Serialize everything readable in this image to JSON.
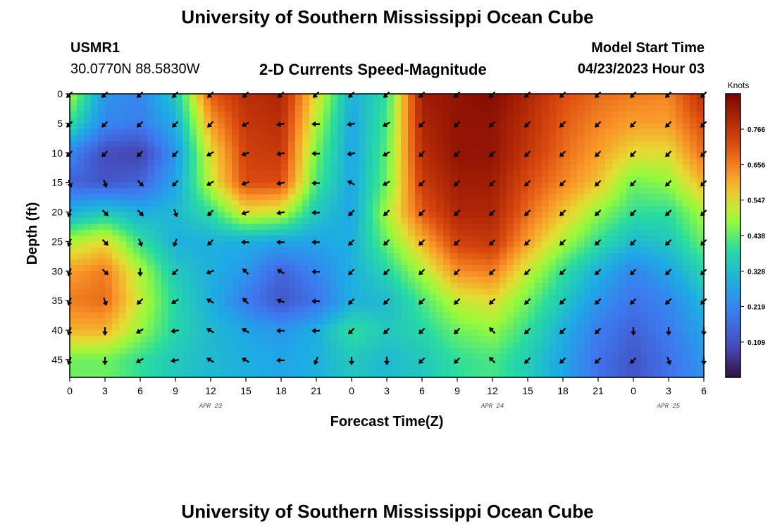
{
  "header": {
    "title": "University of Southern Mississippi Ocean Cube",
    "station_id": "USMR1",
    "station_coords": "30.0770N  88.5830W",
    "chart_title": "2-D Currents Speed-Magnitude",
    "model_start_label": "Model Start Time",
    "model_start_value": "04/23/2023 Hour 03"
  },
  "footer": {
    "title": "University of Southern Mississippi Ocean Cube"
  },
  "chart_data": {
    "type": "heatmap",
    "title": "2-D Currents Speed-Magnitude",
    "xlabel": "Forecast Time(Z)",
    "ylabel": "Depth (ft)",
    "colorbar_label": "Knots",
    "colorbar_ticks": [
      0.109,
      0.219,
      0.328,
      0.438,
      0.547,
      0.656,
      0.766
    ],
    "colorbar_range": [
      0.0,
      0.875
    ],
    "x_tick_labels": [
      "0",
      "3",
      "6",
      "9",
      "12",
      "15",
      "18",
      "21",
      "0",
      "3",
      "6",
      "9",
      "12",
      "15",
      "18",
      "21",
      "0",
      "3",
      "6"
    ],
    "date_labels": [
      {
        "label": "APR 23",
        "hours": 12
      },
      {
        "label": "APR 24",
        "hours": 36
      },
      {
        "label": "APR 25",
        "hours": 51
      }
    ],
    "y_ticks": [
      0,
      5,
      10,
      15,
      20,
      25,
      30,
      35,
      40,
      45
    ],
    "ylim": [
      0,
      48
    ],
    "hours": [
      0,
      3,
      6,
      9,
      12,
      15,
      18,
      21,
      24,
      27,
      30,
      33,
      36,
      39,
      42,
      45,
      48,
      51,
      54
    ],
    "depths": [
      0,
      5,
      10,
      15,
      20,
      25,
      30,
      35,
      40,
      45
    ],
    "speed_knots": [
      [
        0.5,
        0.25,
        0.22,
        0.35,
        0.7,
        0.78,
        0.8,
        0.55,
        0.3,
        0.4,
        0.82,
        0.84,
        0.86,
        0.8,
        0.72,
        0.68,
        0.66,
        0.65,
        0.78
      ],
      [
        0.4,
        0.22,
        0.2,
        0.3,
        0.62,
        0.76,
        0.78,
        0.5,
        0.28,
        0.42,
        0.8,
        0.84,
        0.84,
        0.78,
        0.7,
        0.65,
        0.62,
        0.62,
        0.72
      ],
      [
        0.22,
        0.1,
        0.08,
        0.25,
        0.55,
        0.74,
        0.76,
        0.45,
        0.28,
        0.44,
        0.78,
        0.84,
        0.84,
        0.76,
        0.68,
        0.62,
        0.55,
        0.55,
        0.68
      ],
      [
        0.15,
        0.12,
        0.15,
        0.28,
        0.52,
        0.72,
        0.72,
        0.42,
        0.28,
        0.45,
        0.75,
        0.82,
        0.82,
        0.72,
        0.65,
        0.58,
        0.45,
        0.48,
        0.6
      ],
      [
        0.3,
        0.35,
        0.3,
        0.32,
        0.4,
        0.55,
        0.52,
        0.35,
        0.28,
        0.5,
        0.7,
        0.8,
        0.8,
        0.68,
        0.58,
        0.48,
        0.4,
        0.4,
        0.5
      ],
      [
        0.5,
        0.55,
        0.4,
        0.3,
        0.3,
        0.3,
        0.28,
        0.28,
        0.3,
        0.45,
        0.6,
        0.74,
        0.76,
        0.62,
        0.5,
        0.4,
        0.32,
        0.35,
        0.45
      ],
      [
        0.62,
        0.66,
        0.5,
        0.35,
        0.3,
        0.25,
        0.15,
        0.22,
        0.3,
        0.38,
        0.5,
        0.64,
        0.66,
        0.52,
        0.4,
        0.3,
        0.22,
        0.28,
        0.38
      ],
      [
        0.66,
        0.68,
        0.52,
        0.38,
        0.3,
        0.2,
        0.12,
        0.18,
        0.3,
        0.32,
        0.42,
        0.52,
        0.55,
        0.45,
        0.35,
        0.25,
        0.18,
        0.22,
        0.32
      ],
      [
        0.6,
        0.6,
        0.48,
        0.38,
        0.32,
        0.28,
        0.25,
        0.3,
        0.4,
        0.35,
        0.38,
        0.45,
        0.48,
        0.4,
        0.3,
        0.2,
        0.15,
        0.2,
        0.28
      ],
      [
        0.45,
        0.45,
        0.4,
        0.35,
        0.32,
        0.3,
        0.28,
        0.3,
        0.35,
        0.32,
        0.35,
        0.4,
        0.42,
        0.36,
        0.28,
        0.18,
        0.12,
        0.18,
        0.25
      ]
    ],
    "direction_to_deg": [
      [
        225,
        225,
        225,
        225,
        225,
        225,
        225,
        225,
        225,
        225,
        225,
        225,
        225,
        225,
        225,
        225,
        225,
        225,
        225
      ],
      [
        225,
        225,
        225,
        225,
        225,
        240,
        260,
        270,
        260,
        240,
        225,
        225,
        225,
        225,
        225,
        225,
        225,
        225,
        225
      ],
      [
        225,
        225,
        225,
        225,
        240,
        250,
        260,
        270,
        260,
        240,
        225,
        225,
        225,
        225,
        225,
        225,
        225,
        225,
        225
      ],
      [
        160,
        160,
        135,
        225,
        240,
        250,
        260,
        270,
        300,
        240,
        225,
        225,
        225,
        225,
        225,
        225,
        225,
        225,
        225
      ],
      [
        200,
        135,
        135,
        160,
        225,
        250,
        260,
        270,
        225,
        225,
        225,
        225,
        225,
        225,
        225,
        225,
        225,
        225,
        225
      ],
      [
        200,
        135,
        160,
        200,
        225,
        270,
        270,
        270,
        225,
        225,
        225,
        225,
        225,
        225,
        225,
        225,
        225,
        225,
        225
      ],
      [
        200,
        135,
        180,
        225,
        250,
        315,
        300,
        270,
        225,
        225,
        225,
        225,
        225,
        225,
        225,
        225,
        225,
        225,
        225
      ],
      [
        200,
        160,
        225,
        240,
        300,
        315,
        290,
        270,
        225,
        225,
        225,
        225,
        225,
        225,
        225,
        225,
        225,
        225,
        225
      ],
      [
        200,
        180,
        240,
        260,
        300,
        300,
        270,
        270,
        225,
        225,
        225,
        225,
        315,
        225,
        225,
        225,
        180,
        180,
        180
      ],
      [
        200,
        180,
        240,
        260,
        300,
        300,
        270,
        200,
        180,
        180,
        225,
        225,
        315,
        225,
        225,
        225,
        225,
        160,
        180
      ]
    ]
  }
}
